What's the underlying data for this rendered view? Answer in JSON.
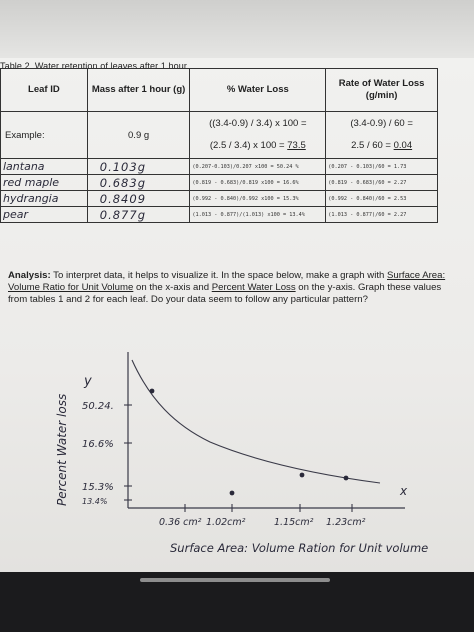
{
  "table": {
    "caption": "Table 2. Water retention of leaves after 1 hour",
    "headers": {
      "leaf": "Leaf ID",
      "mass": "Mass after 1 hour (g)",
      "pct": "% Water Loss",
      "rate": "Rate of Water Loss (g/min)"
    },
    "example": {
      "leaf": "Example:",
      "mass": "0.9 g",
      "pct_line1": "((3.4-0.9) / 3.4) x 100 =",
      "pct_line2a": "(2.5 / 3.4) x 100 = ",
      "pct_line2b": "73.5",
      "rate_line1": "(3.4-0.9) / 60 =",
      "rate_line2a": "2.5 / 60 = ",
      "rate_line2b": "0.04"
    },
    "rows": [
      {
        "leaf": "lantana",
        "mass": "0.103g",
        "pct": "(0.207-0.103)/0.207 x100 = 50.24 %",
        "rate": "(0.207 - 0.103)/60 = 1.73"
      },
      {
        "leaf": "red maple",
        "mass": "0.683g",
        "pct": "(0.819 - 0.683)/0.819 x100 = 16.6%",
        "rate": "(0.819 - 0.683)/60 = 2.27"
      },
      {
        "leaf": "hydrangia",
        "mass": "0.8409",
        "pct": "(0.992 - 0.840)/0.992 x100 = 15.3%",
        "rate": "(0.992 - 0.840)/60 = 2.53"
      },
      {
        "leaf": "pear",
        "mass": "0.877g",
        "pct": "(1.013 - 0.877)/(1.013) x100 = 13.4%",
        "rate": "(1.013 - 0.877)/60 = 2.27"
      }
    ]
  },
  "analysis": {
    "label": "Analysis:",
    "text1": " To interpret data, it helps to visualize it. In the space below, make a graph with ",
    "x_var": "Surface Area: Volume Ratio for Unit Volume",
    "text2": " on the x-axis and ",
    "y_var": "Percent Water Loss",
    "text3": " on the y-axis. Graph these values from tables 1 and 2 for each leaf. Do your data seem to follow any particular pattern?"
  },
  "chart_data": {
    "type": "scatter",
    "title": "",
    "xlabel": "Surface Area: Volume Ration for Unit volume",
    "ylabel": "Percent Water loss",
    "x_axis_letter": "x",
    "y_axis_letter": "y",
    "x_ticks": [
      "0.36 cm²",
      "1.02cm²",
      "1.15cm²",
      "1.23cm²"
    ],
    "y_ticks": [
      "50.24.",
      "16.6%",
      "15.3%",
      "13.4%"
    ],
    "x": [
      0.36,
      1.02,
      1.15,
      1.23
    ],
    "y": [
      50.24,
      16.6,
      15.3,
      13.4
    ],
    "curve": "hand-drawn decreasing trend line"
  }
}
